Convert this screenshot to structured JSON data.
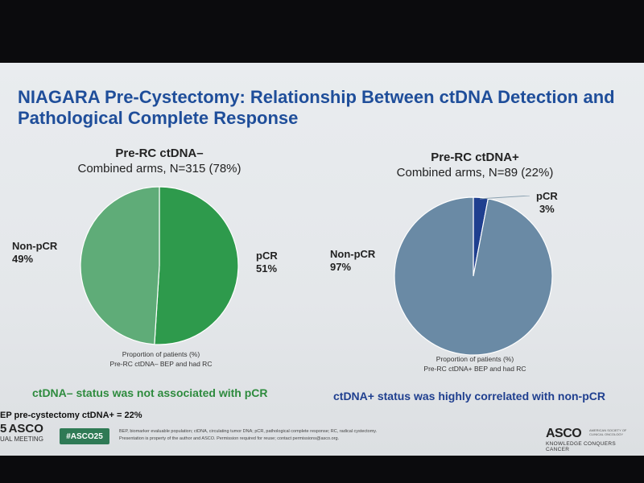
{
  "slide": {
    "title_line1": "NIAGARA Pre-Cystectomy: Relationship Between ctDNA Detection and",
    "title_line2": "Pathological Complete Response",
    "bep_note": "EP pre-cystectomy ctDNA+ = 22%",
    "footer": {
      "asco_left_word": "ASCO",
      "asco_left_prefix": "5",
      "asco_left_sub": "UAL MEETING",
      "hashtag": "#ASCO25",
      "abbrev_line1": "BEP, biomarker evaluable population; ctDNA, circulating tumor DNA; pCR, pathological complete response; RC, radical cystectomy.",
      "abbrev_line2": "Presentation is property of the author and ASCO. Permission required for reuse; contact permissions@asco.org.",
      "asco_right_word": "ASCO",
      "asco_right_small": "AMERICAN SOCIETY OF CLINICAL ONCOLOGY",
      "asco_right_tag": "KNOWLEDGE CONQUERS CANCER"
    }
  },
  "colors": {
    "title": "#1f4e9a",
    "neg_pcr": "#2e9a4c",
    "neg_nonpcr": "#5fac78",
    "pos_pcr": "#1f3f8f",
    "pos_nonpcr": "#6a8aa5",
    "conclusion_left": "#2e8b3e",
    "conclusion_right": "#1f3f8f"
  },
  "chart_data": [
    {
      "type": "pie",
      "title": "Pre-RC ctDNA–",
      "subtitle": "Combined arms, N=315 (78%)",
      "categories": [
        "pCR",
        "Non-pCR"
      ],
      "values": [
        51,
        49
      ],
      "value_labels": [
        "51%",
        "49%"
      ],
      "footnote_line1": "Proportion of patients (%)",
      "footnote_line2": "Pre-RC ctDNA– BEP and had RC",
      "conclusion": "ctDNA– status was not associated with pCR"
    },
    {
      "type": "pie",
      "title": "Pre-RC ctDNA+",
      "subtitle": "Combined arms, N=89 (22%)",
      "categories": [
        "pCR",
        "Non-pCR"
      ],
      "values": [
        3,
        97
      ],
      "value_labels": [
        "3%",
        "97%"
      ],
      "footnote_line1": "Proportion of patients (%)",
      "footnote_line2": "Pre-RC ctDNA+ BEP and had RC",
      "conclusion": "ctDNA+ status was highly correlated with non-pCR"
    }
  ]
}
